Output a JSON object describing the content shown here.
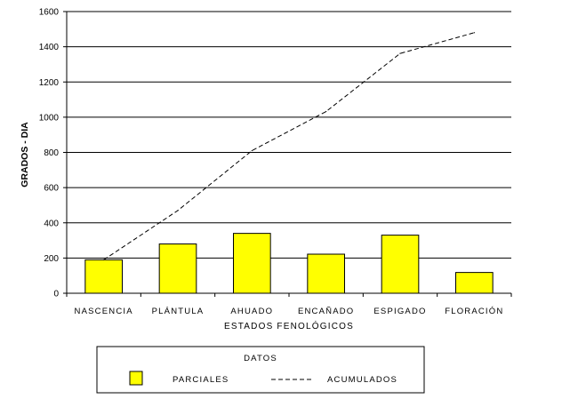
{
  "chart_data": {
    "type": "bar",
    "categories": [
      "NASCENCIA",
      "PLÁNTULA",
      "AHUADO",
      "ENCAÑADO",
      "ESPIGADO",
      "FLORACIÓN"
    ],
    "series": [
      {
        "name": "PARCIALES",
        "type": "bar",
        "values": [
          190,
          280,
          340,
          222,
          330,
          118
        ],
        "color": "#ffff00"
      },
      {
        "name": "ACUMULADOS",
        "type": "line",
        "style": "dashed",
        "values": [
          190,
          470,
          810,
          1032,
          1362,
          1480
        ],
        "color": "#000000"
      }
    ],
    "xlabel": "ESTADOS FENOLÓGICOS",
    "ylabel": "GRADOS - DIA",
    "ylim": [
      0,
      1600
    ],
    "yticks": [
      "0",
      "200",
      "400",
      "600",
      "800",
      "1000",
      "1200",
      "1400",
      "1600"
    ],
    "grid": true,
    "legend": {
      "title": "DATOS",
      "placement": "bottom"
    }
  }
}
